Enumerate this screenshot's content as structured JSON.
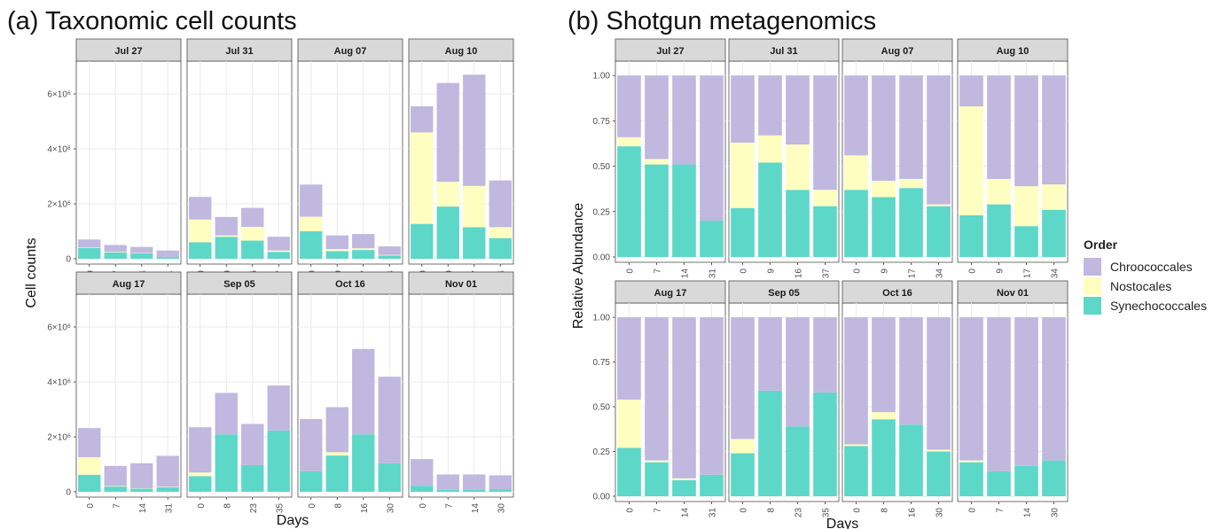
{
  "colors": {
    "Chroococcales": "#c0b8df",
    "Nostocales": "#fdfec0",
    "Synechococcales": "#5dd7c8",
    "strip_fill": "#d9d9d9",
    "grid": "#ebebeb"
  },
  "legend": {
    "title": "Order",
    "items": [
      "Chroococcales",
      "Nostocales",
      "Synechococcales"
    ]
  },
  "chart_data": [
    {
      "type": "bar",
      "stacked": true,
      "title": "(a) Taxonomic cell counts",
      "xlabel": "Days",
      "ylabel": "Cell counts",
      "ylim": [
        0,
        7000000
      ],
      "y_ticks": [
        0,
        2000000,
        4000000,
        6000000
      ],
      "y_tick_labels": [
        "0",
        "2×10⁶",
        "4×10⁶",
        "6×10⁶"
      ],
      "series_names": [
        "Synechococcales",
        "Nostocales",
        "Chroococcales"
      ],
      "panels": [
        {
          "label": "Jul 27",
          "x": [
            "0",
            "7",
            "14",
            "31"
          ],
          "values": [
            [
              400000,
              20000,
              280000
            ],
            [
              230000,
              20000,
              250000
            ],
            [
              200000,
              10000,
              220000
            ],
            [
              50000,
              0,
              250000
            ]
          ]
        },
        {
          "label": "Jul 31",
          "x": [
            "0",
            "9",
            "16",
            "37"
          ],
          "values": [
            [
              600000,
              830000,
              820000
            ],
            [
              800000,
              50000,
              670000
            ],
            [
              660000,
              500000,
              690000
            ],
            [
              250000,
              50000,
              500000
            ]
          ]
        },
        {
          "label": "Aug 07",
          "x": [
            "0",
            "9",
            "17",
            "34"
          ],
          "values": [
            [
              1000000,
              530000,
              1170000
            ],
            [
              280000,
              70000,
              500000
            ],
            [
              320000,
              60000,
              520000
            ],
            [
              120000,
              20000,
              310000
            ]
          ]
        },
        {
          "label": "Aug 10",
          "x": [
            "0",
            "9",
            "17",
            "34"
          ],
          "values": [
            [
              1270000,
              3330000,
              950000
            ],
            [
              1900000,
              900000,
              3600000
            ],
            [
              1150000,
              1500000,
              4050000
            ],
            [
              750000,
              400000,
              1700000
            ]
          ]
        },
        {
          "label": "Aug 17",
          "x": [
            "0",
            "7",
            "14",
            "31"
          ],
          "values": [
            [
              620000,
              640000,
              1060000
            ],
            [
              190000,
              20000,
              730000
            ],
            [
              120000,
              10000,
              910000
            ],
            [
              160000,
              20000,
              1130000
            ]
          ]
        },
        {
          "label": "Sep 05",
          "x": [
            "0",
            "8",
            "23",
            "35"
          ],
          "values": [
            [
              570000,
              130000,
              1650000
            ],
            [
              2090000,
              0,
              1510000
            ],
            [
              970000,
              0,
              1500000
            ],
            [
              2230000,
              0,
              1640000
            ]
          ]
        },
        {
          "label": "Oct 16",
          "x": [
            "0",
            "8",
            "16",
            "30"
          ],
          "values": [
            [
              750000,
              0,
              1900000
            ],
            [
              1320000,
              120000,
              1640000
            ],
            [
              2090000,
              0,
              3110000
            ],
            [
              1040000,
              0,
              3150000
            ]
          ]
        },
        {
          "label": "Nov 01",
          "x": [
            "0",
            "7",
            "14",
            "30"
          ],
          "values": [
            [
              220000,
              0,
              970000
            ],
            [
              70000,
              0,
              560000
            ],
            [
              70000,
              0,
              560000
            ],
            [
              80000,
              0,
              520000
            ]
          ]
        }
      ]
    },
    {
      "type": "bar",
      "stacked": true,
      "title": "(b) Shotgun metagenomics",
      "xlabel": "Days",
      "ylabel": "Relative Abundance",
      "ylim": [
        0,
        1.05
      ],
      "y_ticks": [
        0,
        0.25,
        0.5,
        0.75,
        1.0
      ],
      "y_tick_labels": [
        "0.00",
        "0.25",
        "0.50",
        "0.75",
        "1.00"
      ],
      "series_names": [
        "Synechococcales",
        "Nostocales",
        "Chroococcales"
      ],
      "panels": [
        {
          "label": "Jul 27",
          "x": [
            "0",
            "7",
            "14",
            "31"
          ],
          "values": [
            [
              0.61,
              0.05,
              0.34
            ],
            [
              0.51,
              0.03,
              0.46
            ],
            [
              0.51,
              0.0,
              0.49
            ],
            [
              0.2,
              0.0,
              0.8
            ]
          ]
        },
        {
          "label": "Jul 31",
          "x": [
            "0",
            "9",
            "16",
            "37"
          ],
          "values": [
            [
              0.27,
              0.36,
              0.37
            ],
            [
              0.52,
              0.15,
              0.33
            ],
            [
              0.37,
              0.25,
              0.38
            ],
            [
              0.28,
              0.09,
              0.63
            ]
          ]
        },
        {
          "label": "Aug 07",
          "x": [
            "0",
            "9",
            "17",
            "34"
          ],
          "values": [
            [
              0.37,
              0.19,
              0.44
            ],
            [
              0.33,
              0.09,
              0.58
            ],
            [
              0.38,
              0.05,
              0.57
            ],
            [
              0.28,
              0.01,
              0.71
            ]
          ]
        },
        {
          "label": "Aug 10",
          "x": [
            "0",
            "9",
            "17",
            "34"
          ],
          "values": [
            [
              0.23,
              0.6,
              0.17
            ],
            [
              0.29,
              0.14,
              0.57
            ],
            [
              0.17,
              0.22,
              0.61
            ],
            [
              0.26,
              0.14,
              0.6
            ]
          ]
        },
        {
          "label": "Aug 17",
          "x": [
            "0",
            "7",
            "14",
            "31"
          ],
          "values": [
            [
              0.27,
              0.27,
              0.46
            ],
            [
              0.19,
              0.01,
              0.8
            ],
            [
              0.09,
              0.01,
              0.9
            ],
            [
              0.12,
              0.0,
              0.88
            ]
          ]
        },
        {
          "label": "Sep 05",
          "x": [
            "0",
            "8",
            "23",
            "35"
          ],
          "values": [
            [
              0.24,
              0.08,
              0.68
            ],
            [
              0.59,
              0.0,
              0.41
            ],
            [
              0.39,
              0.0,
              0.61
            ],
            [
              0.58,
              0.0,
              0.42
            ]
          ]
        },
        {
          "label": "Oct 16",
          "x": [
            "0",
            "8",
            "16",
            "30"
          ],
          "values": [
            [
              0.28,
              0.01,
              0.71
            ],
            [
              0.43,
              0.04,
              0.53
            ],
            [
              0.4,
              0.0,
              0.6
            ],
            [
              0.25,
              0.01,
              0.74
            ]
          ]
        },
        {
          "label": "Nov 01",
          "x": [
            "0",
            "7",
            "14",
            "30"
          ],
          "values": [
            [
              0.19,
              0.01,
              0.8
            ],
            [
              0.14,
              0.0,
              0.86
            ],
            [
              0.17,
              0.0,
              0.83
            ],
            [
              0.2,
              0.0,
              0.8
            ]
          ]
        }
      ]
    }
  ]
}
